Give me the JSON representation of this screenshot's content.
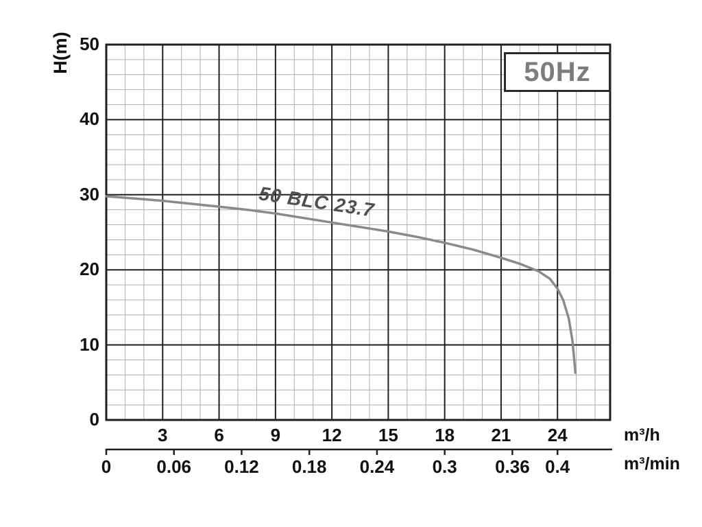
{
  "colors": {
    "background": "#ffffff",
    "grid_minor": "#aeaeae",
    "grid_major": "#1f1f1f",
    "border": "#1f1f1f",
    "curve": "#8a8a8a",
    "hz_text": "#7d7d7d",
    "label_text": "#111111",
    "curve_label_text": "#4f4f4f"
  },
  "chart_data": {
    "type": "line",
    "frequency_label": "50Hz",
    "curve_label": "50 BLC 23.7",
    "ylabel": "H(m)",
    "xlabel_primary": "m³/h",
    "xlabel_secondary": "m³/min",
    "xlim": [
      0,
      26.8
    ],
    "ylim": [
      0,
      50
    ],
    "y_ticks": [
      "50",
      "40",
      "30",
      "20",
      "10",
      "0"
    ],
    "x_ticks_m3h": [
      "3",
      "6",
      "9",
      "12",
      "15",
      "18",
      "21",
      "24"
    ],
    "x_ticks_m3min": [
      "0",
      "0.06",
      "0.12",
      "0.18",
      "0.24",
      "0.3",
      "0.36",
      "0.4"
    ],
    "m3min_to_m3h_factor": 60,
    "grid": {
      "x_major_step": 3,
      "x_minor_step": 1,
      "x_major_max": 24,
      "y_major_step": 10,
      "y_minor_step": 2,
      "grid_on": true
    },
    "series": [
      {
        "name": "50 BLC 23.7",
        "x": [
          0,
          1.5,
          3,
          4.5,
          6,
          7.5,
          9,
          10.5,
          12,
          13.5,
          15,
          16.5,
          18,
          19.5,
          21,
          22,
          23,
          23.6,
          24,
          24.3,
          24.6,
          24.8,
          24.95
        ],
        "y": [
          29.8,
          29.5,
          29.2,
          28.8,
          28.4,
          28.0,
          27.5,
          26.9,
          26.3,
          25.7,
          25.1,
          24.4,
          23.6,
          22.7,
          21.6,
          20.8,
          19.8,
          18.8,
          17.5,
          16.0,
          13.5,
          10.5,
          6.3
        ]
      }
    ],
    "legend_position": "none",
    "title": ""
  }
}
